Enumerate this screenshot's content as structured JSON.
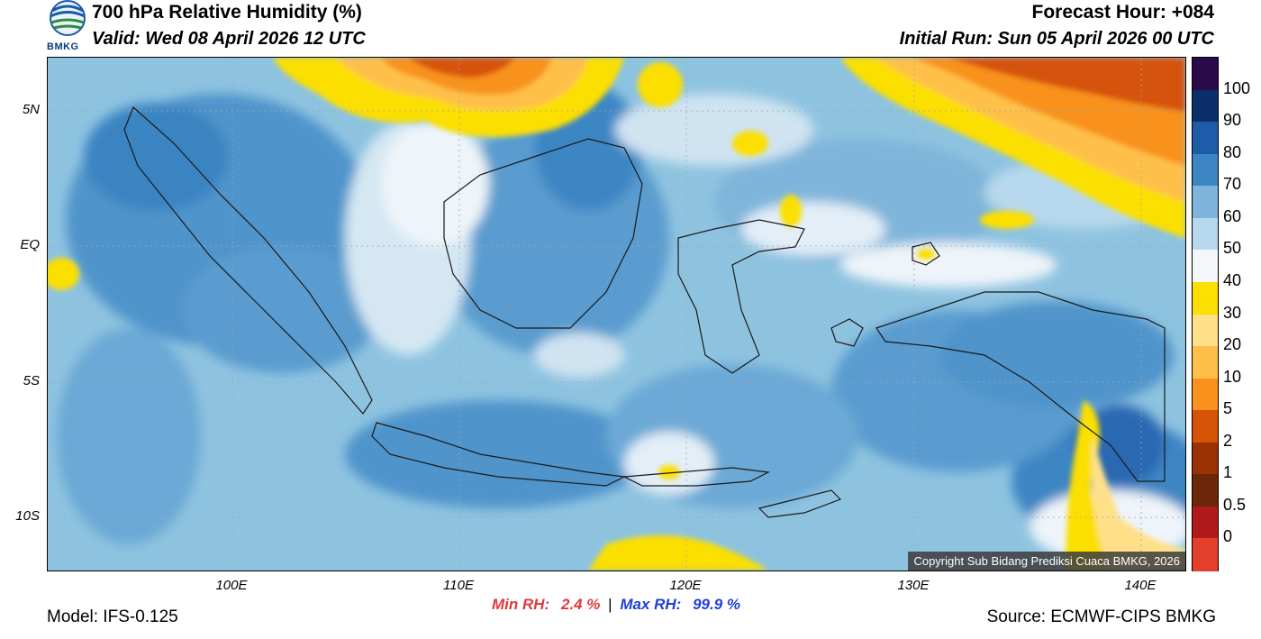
{
  "header": {
    "title": "700 hPa Relative Humidity (%)",
    "valid": "Valid: Wed 08 April 2026 12 UTC",
    "forecast_hour": "Forecast Hour: +084",
    "initial_run": "Initial Run: Sun 05 April 2026 00 UTC"
  },
  "logo": {
    "text": "BMKG"
  },
  "map": {
    "lat_ticks": [
      "5N",
      "EQ",
      "5S",
      "10S"
    ],
    "lon_ticks": [
      "100E",
      "110E",
      "120E",
      "130E",
      "140E"
    ],
    "copyright": "Copyright Sub Bidang Prediksi Cuaca BMKG, 2026"
  },
  "colorbar": {
    "labels": [
      "100",
      "90",
      "80",
      "70",
      "60",
      "50",
      "40",
      "30",
      "20",
      "10",
      "5",
      "2",
      "1",
      "0.5",
      "0"
    ],
    "colors": [
      "#2a0a4a",
      "#0c2f6b",
      "#1f5ca8",
      "#3d86c4",
      "#7fb5da",
      "#b7d8ec",
      "#f4f7fa",
      "#fbdf00",
      "#ffe089",
      "#ffc04a",
      "#f8921c",
      "#d65307",
      "#9a3203",
      "#6b2708",
      "#b01a1a",
      "#e3402c"
    ]
  },
  "footer": {
    "min_label": "Min RH:",
    "min_value": "2.4 %",
    "separator": "|",
    "max_label": "Max RH:",
    "max_value": "99.9 %",
    "model": "Model: IFS-0.125",
    "source": "Source: ECMWF-CIPS BMKG"
  }
}
